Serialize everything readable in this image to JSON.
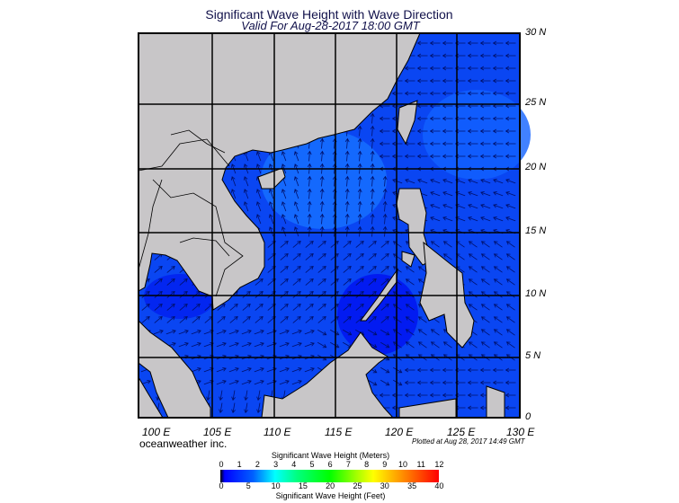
{
  "title": "Significant Wave Height with Wave Direction",
  "subtitle": "Valid For Aug-28-2017 18:00 GMT",
  "brand": "oceanweather inc.",
  "plotted": "Plotted at Aug 28, 2017 14:49 GMT",
  "lat_labels": [
    "30 N",
    "25 N",
    "20 N",
    "15 N",
    "10 N",
    "5 N",
    "0"
  ],
  "lon_labels": [
    "100 E",
    "105 E",
    "110 E",
    "115 E",
    "120 E",
    "125 E",
    "130 E"
  ],
  "legend": {
    "title_top": "Significant Wave Height (Meters)",
    "title_bottom": "Significant Wave Height (Feet)",
    "meters": [
      "0",
      "1",
      "2",
      "3",
      "4",
      "5",
      "6",
      "7",
      "8",
      "9",
      "10",
      "11",
      "12"
    ],
    "feet": [
      "0",
      "5",
      "10",
      "15",
      "20",
      "25",
      "30",
      "35",
      "40"
    ]
  },
  "colors": {
    "land": "#c8c6c8",
    "ocean": "#0a46f2",
    "ocean_light": "#1670ff",
    "ocean_dark": "#0010f0",
    "arrow": "#00106a",
    "grid": "#000000"
  }
}
